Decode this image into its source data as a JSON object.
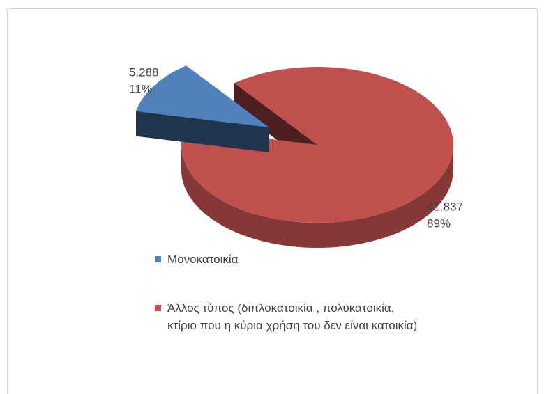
{
  "chart_data": {
    "type": "pie",
    "categories": [
      "Μονοκατοικία",
      "Άλλος τύπος (διπλοκατοικία , πολυκατοικία, κτίριο που η κύρια χρήση του δεν είναι κατοικία)"
    ],
    "values": [
      5288,
      41837
    ],
    "value_labels": [
      "5.288",
      "41.837"
    ],
    "percent_labels": [
      "11%",
      "89%"
    ],
    "colors": [
      "#4f81bd",
      "#c0504d"
    ],
    "exploded": [
      true,
      false
    ],
    "legend": "bottom"
  }
}
